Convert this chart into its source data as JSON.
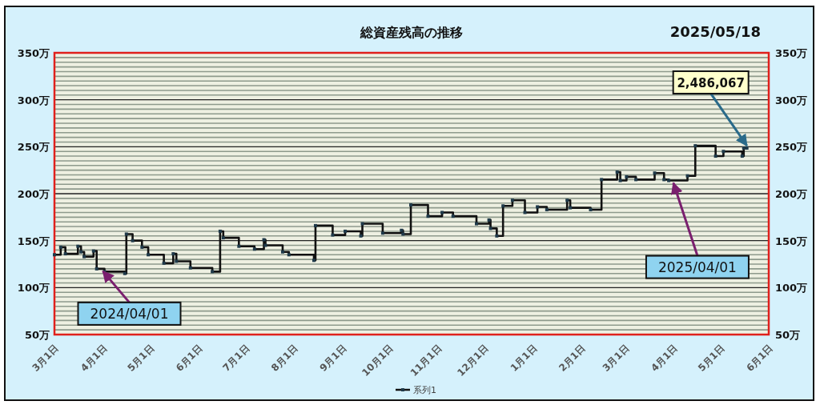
{
  "chart_data": {
    "type": "step",
    "title": "総資産残高の推移",
    "x": [
      "2024-03-01",
      "2024-03-05",
      "2024-03-08",
      "2024-03-16",
      "2024-03-18",
      "2024-03-20",
      "2024-03-26",
      "2024-03-28",
      "2024-04-02",
      "2024-04-15",
      "2024-04-16",
      "2024-04-20",
      "2024-04-26",
      "2024-04-30",
      "2024-05-10",
      "2024-05-16",
      "2024-05-18",
      "2024-05-27",
      "2024-06-10",
      "2024-06-15",
      "2024-06-17",
      "2024-06-27",
      "2024-07-07",
      "2024-07-13",
      "2024-07-14",
      "2024-07-25",
      "2024-07-29",
      "2024-08-14",
      "2024-08-15",
      "2024-08-26",
      "2024-09-03",
      "2024-09-13",
      "2024-09-14",
      "2024-09-27",
      "2024-10-09",
      "2024-10-10",
      "2024-10-15",
      "2024-10-26",
      "2024-11-04",
      "2024-11-11",
      "2024-11-26",
      "2024-12-04",
      "2024-12-05",
      "2024-12-09",
      "2024-12-13",
      "2024-12-19",
      "2024-12-27",
      "2025-01-04",
      "2025-01-10",
      "2025-01-23",
      "2025-01-25",
      "2025-02-07",
      "2025-02-14",
      "2025-02-24",
      "2025-02-26",
      "2025-03-02",
      "2025-03-08",
      "2025-03-20",
      "2025-03-26",
      "2025-03-29",
      "2025-04-10",
      "2025-04-15",
      "2025-04-28",
      "2025-05-03",
      "2025-05-15",
      "2025-05-16",
      "2025-05-18"
    ],
    "series": [
      {
        "name": "系列1",
        "color": "#1f3a4a",
        "values": [
          135,
          143,
          136,
          144,
          138,
          133,
          139,
          120,
          117,
          115,
          157,
          150,
          143,
          135,
          126,
          136,
          128,
          121,
          117,
          160,
          153,
          144,
          141,
          151,
          145,
          138,
          135,
          129,
          166,
          156,
          160,
          155,
          168,
          158,
          161,
          157,
          188,
          176,
          180,
          176,
          168,
          172,
          163,
          155,
          187,
          193,
          180,
          186,
          183,
          193,
          185,
          183,
          215,
          223,
          214,
          218,
          215,
          222,
          215,
          214,
          219,
          251,
          240,
          245,
          240,
          248.6,
          248.6
        ]
      }
    ],
    "xlim": [
      "2024-03-01",
      "2025-06-01"
    ],
    "xticks": [
      {
        "value": "2024-03-01",
        "label": "3月1日"
      },
      {
        "value": "2024-04-01",
        "label": "4月1日"
      },
      {
        "value": "2024-05-01",
        "label": "5月1日"
      },
      {
        "value": "2024-06-01",
        "label": "6月1日"
      },
      {
        "value": "2024-07-01",
        "label": "7月1日"
      },
      {
        "value": "2024-08-01",
        "label": "8月1日"
      },
      {
        "value": "2024-09-01",
        "label": "9月1日"
      },
      {
        "value": "2024-10-01",
        "label": "10月1日"
      },
      {
        "value": "2024-11-01",
        "label": "11月1日"
      },
      {
        "value": "2024-12-01",
        "label": "12月1日"
      },
      {
        "value": "2025-01-01",
        "label": "1月1日"
      },
      {
        "value": "2025-02-01",
        "label": "2月1日"
      },
      {
        "value": "2025-03-01",
        "label": "3月1日"
      },
      {
        "value": "2025-04-01",
        "label": "4月1日"
      },
      {
        "value": "2025-05-01",
        "label": "5月1日"
      },
      {
        "value": "2025-06-01",
        "label": "6月1日"
      }
    ],
    "ylim": [
      50,
      350
    ],
    "yticks": [
      {
        "value": 50,
        "label": "50万"
      },
      {
        "value": 100,
        "label": "100万"
      },
      {
        "value": 150,
        "label": "150万"
      },
      {
        "value": 200,
        "label": "200万"
      },
      {
        "value": 250,
        "label": "250万"
      },
      {
        "value": 300,
        "label": "300万"
      },
      {
        "value": 350,
        "label": "350万"
      }
    ],
    "y2lim": [
      50,
      350
    ],
    "y2ticks": [
      {
        "value": 50,
        "label": "50万"
      },
      {
        "value": 100,
        "label": "100万"
      },
      {
        "value": 150,
        "label": "150万"
      },
      {
        "value": 200,
        "label": "200万"
      },
      {
        "value": 250,
        "label": "250万"
      },
      {
        "value": 300,
        "label": "300万"
      },
      {
        "value": 350,
        "label": "350万"
      }
    ],
    "grid": "y",
    "legend": "bottom",
    "marker": "square",
    "line_style": "solid",
    "annotations": [
      "2025/05/18",
      {
        "text": "2024/04/01",
        "x": "2024-04-01",
        "y": 120
      },
      {
        "text": "2025/04/01",
        "x": "2025-04-01",
        "y": 214
      },
      {
        "text": "2,486,067",
        "x": "2025-05-18",
        "y": 248.6
      }
    ]
  }
}
